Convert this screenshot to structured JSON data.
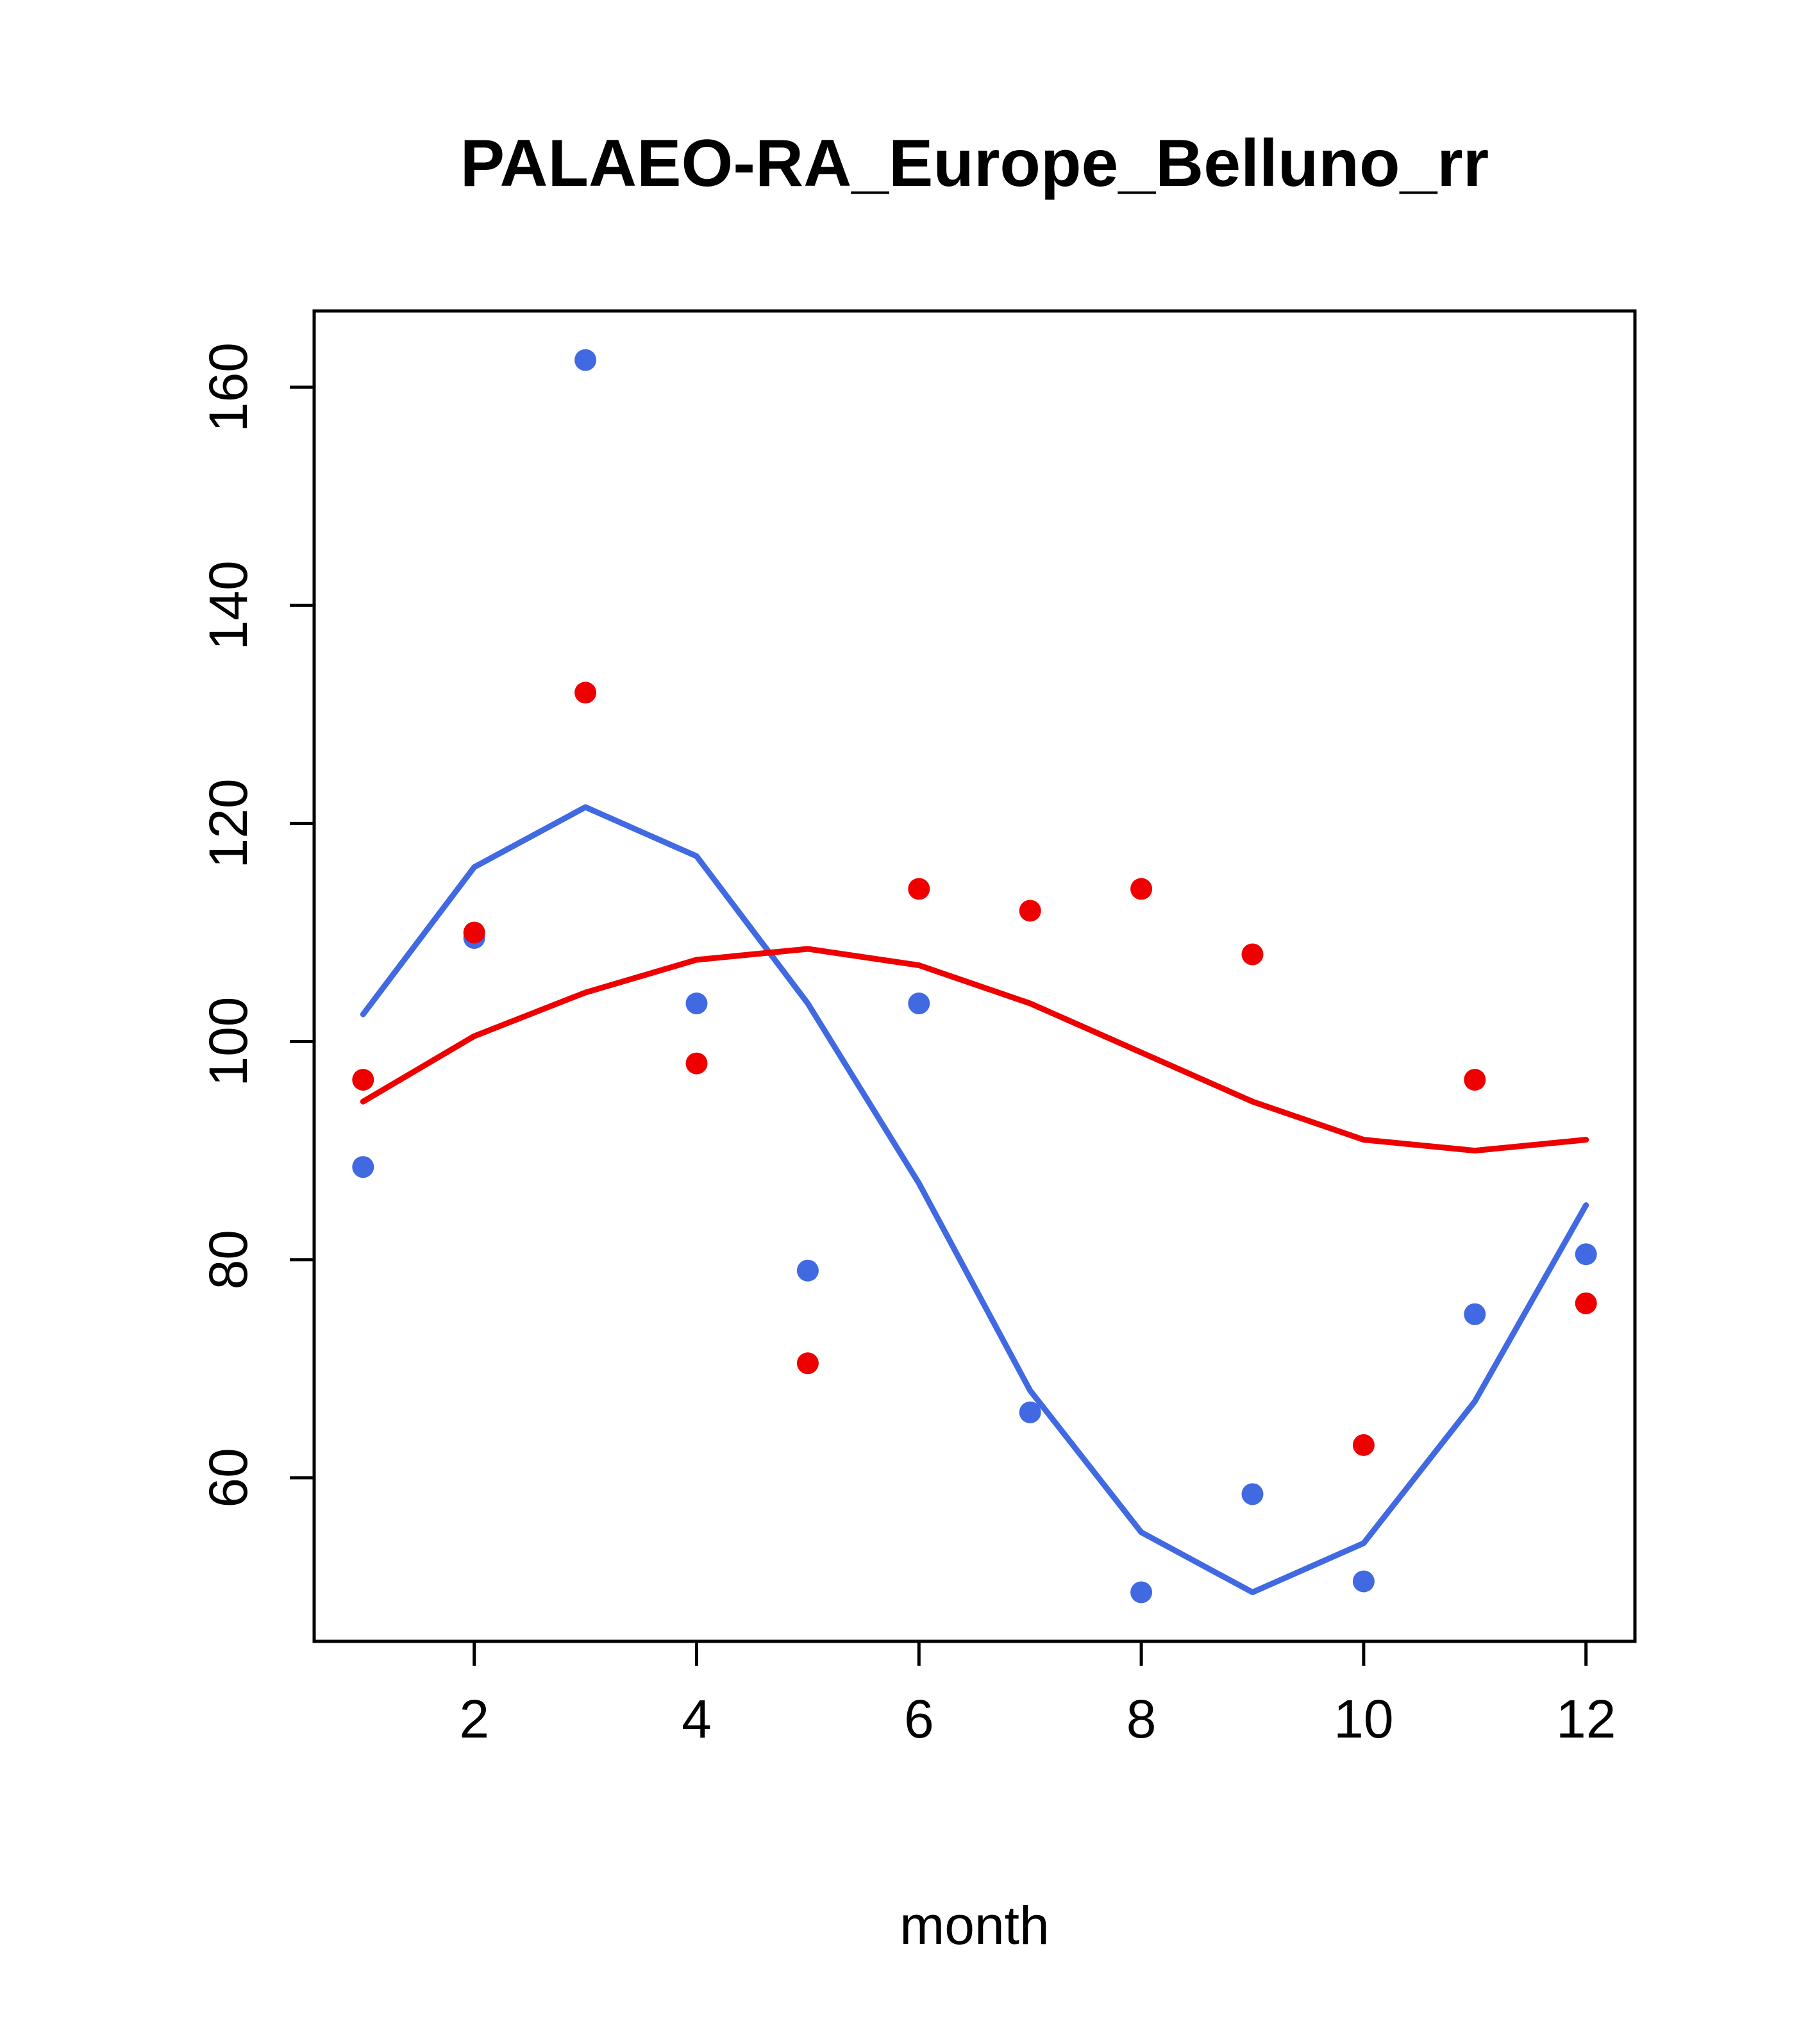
{
  "page": {
    "background": "#ffffff"
  },
  "chart_data": {
    "type": "scatter",
    "title": "PALAEO-RA_Europe_Belluno_rr",
    "xlabel": "month",
    "ylabel": "",
    "x": [
      1,
      2,
      3,
      4,
      5,
      6,
      7,
      8,
      9,
      10,
      11,
      12
    ],
    "x_ticks": [
      2,
      4,
      6,
      8,
      10,
      12
    ],
    "y_ticks": [
      60,
      80,
      100,
      120,
      140,
      160
    ],
    "xlim": [
      0.56,
      12.44
    ],
    "ylim": [
      45,
      167
    ],
    "grid": false,
    "legend_position": "none",
    "axis_color": "#000000",
    "series": [
      {
        "name": "blue-smooth-line",
        "kind": "line",
        "color": "#4169E1",
        "values": [
          102.5,
          116,
          121.5,
          117,
          103.5,
          87,
          68,
          55,
          49.5,
          54,
          67,
          85
        ]
      },
      {
        "name": "red-smooth-line",
        "kind": "line",
        "color": "#EE0000",
        "values": [
          94.5,
          100.5,
          104.5,
          107.5,
          108.5,
          107,
          103.5,
          99,
          94.5,
          91,
          90,
          91
        ]
      },
      {
        "name": "blue-points",
        "kind": "points",
        "color": "#4169E1",
        "values": [
          88.5,
          109.5,
          162.5,
          103.5,
          79,
          103.5,
          66,
          49.5,
          58.5,
          50.5,
          75,
          80.5
        ]
      },
      {
        "name": "red-points",
        "kind": "points",
        "color": "#EE0000",
        "values": [
          96.5,
          110,
          132,
          98,
          70.5,
          114,
          112,
          114,
          108,
          63,
          96.5,
          76
        ]
      }
    ]
  }
}
